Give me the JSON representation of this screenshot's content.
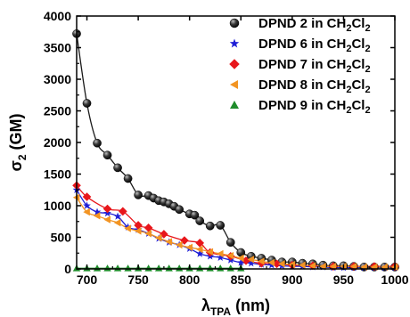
{
  "chart_data": {
    "type": "scatter",
    "xlabel": {
      "main": "λ",
      "sub": "TPA",
      "rest": " (nm)"
    },
    "ylabel": {
      "main": "σ",
      "sub": "2",
      "rest": " (GM)"
    },
    "xlim": [
      690,
      1000
    ],
    "ylim": [
      0,
      4000
    ],
    "xticks": [
      700,
      750,
      800,
      850,
      900,
      950,
      1000
    ],
    "yticks": [
      0,
      500,
      1000,
      1500,
      2000,
      2500,
      3000,
      3500,
      4000
    ],
    "legend_position": "top-right",
    "series": [
      {
        "name": "DPND 2 in CH2Cl2",
        "label_parts": [
          "DPND 2 in CH",
          "2",
          "Cl",
          "2"
        ],
        "marker": "sphere",
        "color": "#1a1a1a",
        "x": [
          690,
          700,
          710,
          720,
          730,
          740,
          750,
          760,
          765,
          770,
          775,
          780,
          785,
          790,
          800,
          805,
          810,
          820,
          830,
          840,
          850,
          860,
          870,
          880,
          890,
          900,
          910,
          920,
          930,
          940,
          950,
          960,
          970,
          980,
          990,
          1000
        ],
        "y": [
          3720,
          2620,
          1990,
          1800,
          1600,
          1430,
          1170,
          1160,
          1120,
          1080,
          1060,
          1030,
          990,
          940,
          870,
          850,
          760,
          680,
          690,
          420,
          260,
          200,
          170,
          140,
          110,
          110,
          90,
          80,
          60,
          50,
          50,
          40,
          30,
          30,
          30,
          30
        ]
      },
      {
        "name": "DPND 6 in CH2Cl2",
        "label_parts": [
          "DPND 6 in CH",
          "2",
          "Cl",
          "2"
        ],
        "marker": "star",
        "color": "#1f1fd6",
        "x": [
          690,
          700,
          710,
          720,
          730,
          740,
          750,
          760,
          770,
          780,
          790,
          800,
          810,
          820,
          830,
          840,
          850,
          860,
          870,
          880,
          890,
          900,
          910,
          920,
          930,
          940,
          950,
          960,
          970,
          980,
          990,
          1000
        ],
        "y": [
          1250,
          1000,
          900,
          880,
          830,
          660,
          620,
          560,
          480,
          420,
          380,
          320,
          240,
          200,
          180,
          140,
          100,
          90,
          70,
          60,
          50,
          40,
          40,
          30,
          30,
          20,
          20,
          20,
          20,
          20,
          20,
          20
        ]
      },
      {
        "name": "DPND 7 in CH2Cl2",
        "label_parts": [
          "DPND 7 in CH",
          "2",
          "Cl",
          "2"
        ],
        "marker": "diamond",
        "color": "#e8161b",
        "x": [
          690,
          700,
          720,
          735,
          750,
          760,
          775,
          795,
          810,
          820,
          840,
          855,
          870,
          885,
          900,
          920,
          940,
          960,
          980,
          1000
        ],
        "y": [
          1320,
          1140,
          950,
          910,
          690,
          650,
          550,
          450,
          410,
          260,
          200,
          130,
          90,
          80,
          60,
          50,
          40,
          40,
          40,
          40
        ]
      },
      {
        "name": "DPND 8 in CH2Cl2",
        "label_parts": [
          "DPND 8 in CH",
          "2",
          "Cl",
          "2"
        ],
        "marker": "triangle-left",
        "color": "#f29423",
        "x": [
          690,
          700,
          710,
          720,
          730,
          740,
          750,
          760,
          770,
          780,
          790,
          800,
          810,
          820,
          830,
          840,
          850,
          860,
          870,
          880,
          890,
          900,
          910,
          920,
          930,
          940,
          950,
          960,
          970,
          980,
          990,
          1000
        ],
        "y": [
          1130,
          900,
          840,
          780,
          730,
          640,
          600,
          560,
          490,
          430,
          380,
          340,
          310,
          270,
          240,
          210,
          170,
          150,
          120,
          100,
          80,
          70,
          60,
          50,
          40,
          40,
          40,
          40,
          30,
          30,
          30,
          30
        ]
      },
      {
        "name": "DPND 9 in CH2Cl2",
        "label_parts": [
          "DPND 9 in CH",
          "2",
          "Cl",
          "2"
        ],
        "marker": "triangle-up",
        "color": "#1e8c2a",
        "x": [
          690,
          700,
          710,
          720,
          730,
          740,
          750,
          760,
          770,
          780,
          790,
          800,
          810,
          820,
          830,
          840,
          850
        ],
        "y": [
          10,
          10,
          10,
          10,
          10,
          10,
          10,
          10,
          10,
          10,
          10,
          10,
          10,
          10,
          10,
          10,
          10
        ]
      }
    ]
  }
}
